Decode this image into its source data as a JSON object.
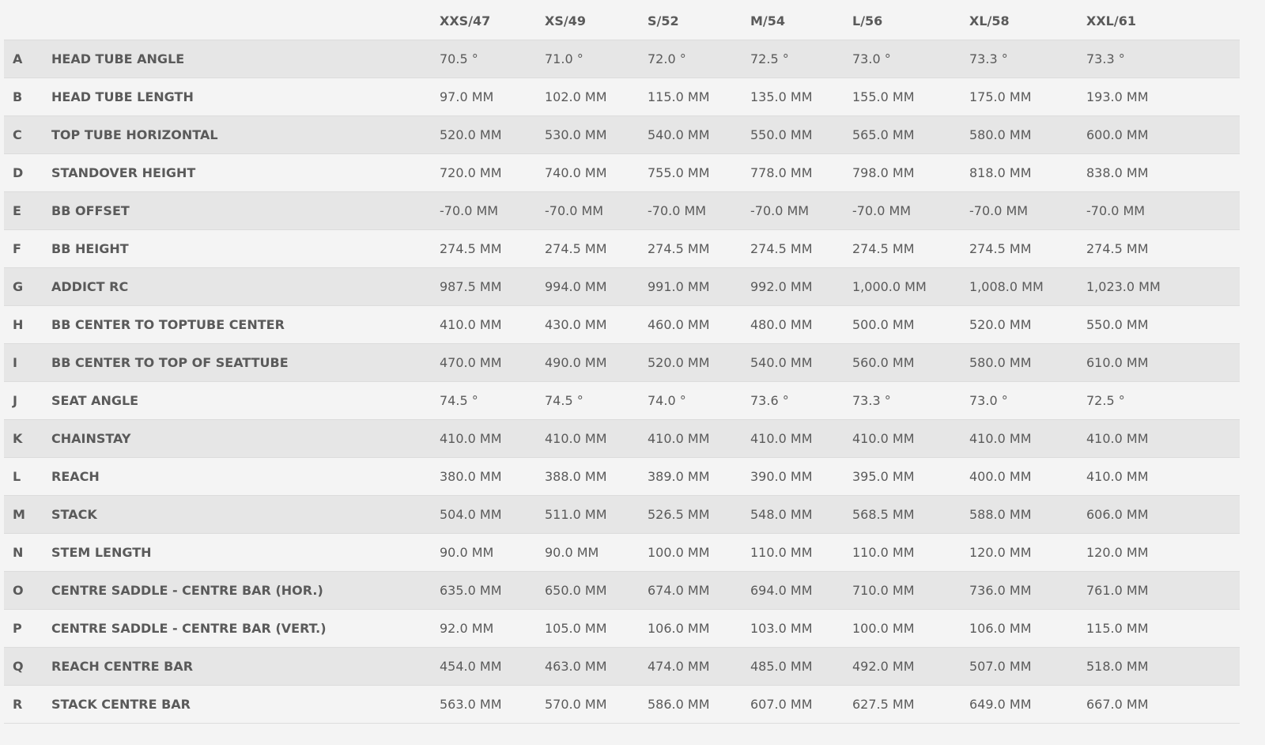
{
  "table": {
    "columns": [
      "XXS/47",
      "XS/49",
      "S/52",
      "M/54",
      "L/56",
      "XL/58",
      "XXL/61"
    ],
    "rows": [
      [
        "A",
        "HEAD TUBE ANGLE",
        "70.5 °",
        "71.0 °",
        "72.0 °",
        "72.5 °",
        "73.0 °",
        "73.3 °",
        "73.3 °"
      ],
      [
        "B",
        "HEAD TUBE LENGTH",
        "97.0 MM",
        "102.0 MM",
        "115.0 MM",
        "135.0 MM",
        "155.0 MM",
        "175.0 MM",
        "193.0 MM"
      ],
      [
        "C",
        "TOP TUBE HORIZONTAL",
        "520.0 MM",
        "530.0 MM",
        "540.0 MM",
        "550.0 MM",
        "565.0 MM",
        "580.0 MM",
        "600.0 MM"
      ],
      [
        "D",
        "STANDOVER HEIGHT",
        "720.0 MM",
        "740.0 MM",
        "755.0 MM",
        "778.0 MM",
        "798.0 MM",
        "818.0 MM",
        "838.0 MM"
      ],
      [
        "E",
        "BB OFFSET",
        "-70.0 MM",
        "-70.0 MM",
        "-70.0 MM",
        "-70.0 MM",
        "-70.0 MM",
        "-70.0 MM",
        "-70.0 MM"
      ],
      [
        "F",
        "BB HEIGHT",
        "274.5 MM",
        "274.5 MM",
        "274.5 MM",
        "274.5 MM",
        "274.5 MM",
        "274.5 MM",
        "274.5 MM"
      ],
      [
        "G",
        "ADDICT RC",
        "987.5 MM",
        "994.0 MM",
        "991.0 MM",
        "992.0 MM",
        "1,000.0 MM",
        "1,008.0 MM",
        "1,023.0 MM"
      ],
      [
        "H",
        "BB CENTER TO TOPTUBE CENTER",
        "410.0 MM",
        "430.0 MM",
        "460.0 MM",
        "480.0 MM",
        "500.0 MM",
        "520.0 MM",
        "550.0 MM"
      ],
      [
        "I",
        "BB CENTER TO TOP OF SEATTUBE",
        "470.0 MM",
        "490.0 MM",
        "520.0 MM",
        "540.0 MM",
        "560.0 MM",
        "580.0 MM",
        "610.0 MM"
      ],
      [
        "J",
        "SEAT ANGLE",
        "74.5 °",
        "74.5 °",
        "74.0 °",
        "73.6 °",
        "73.3 °",
        "73.0 °",
        "72.5 °"
      ],
      [
        "K",
        "CHAINSTAY",
        "410.0 MM",
        "410.0 MM",
        "410.0 MM",
        "410.0 MM",
        "410.0 MM",
        "410.0 MM",
        "410.0 MM"
      ],
      [
        "L",
        "REACH",
        "380.0 MM",
        "388.0 MM",
        "389.0 MM",
        "390.0 MM",
        "395.0 MM",
        "400.0 MM",
        "410.0 MM"
      ],
      [
        "M",
        "STACK",
        "504.0 MM",
        "511.0 MM",
        "526.5 MM",
        "548.0 MM",
        "568.5 MM",
        "588.0 MM",
        "606.0 MM"
      ],
      [
        "N",
        "STEM LENGTH",
        "90.0 MM",
        "90.0 MM",
        "100.0 MM",
        "110.0 MM",
        "110.0 MM",
        "120.0 MM",
        "120.0 MM"
      ],
      [
        "O",
        "CENTRE SADDLE - CENTRE BAR (HOR.)",
        "635.0 MM",
        "650.0 MM",
        "674.0 MM",
        "694.0 MM",
        "710.0 MM",
        "736.0 MM",
        "761.0 MM"
      ],
      [
        "P",
        "CENTRE SADDLE - CENTRE BAR (VERT.)",
        "92.0 MM",
        "105.0 MM",
        "106.0 MM",
        "103.0 MM",
        "100.0 MM",
        "106.0 MM",
        "115.0 MM"
      ],
      [
        "Q",
        "REACH CENTRE BAR",
        "454.0 MM",
        "463.0 MM",
        "474.0 MM",
        "485.0 MM",
        "492.0 MM",
        "507.0 MM",
        "518.0 MM"
      ],
      [
        "R",
        "STACK CENTRE BAR",
        "563.0 MM",
        "570.0 MM",
        "586.0 MM",
        "607.0 MM",
        "627.5 MM",
        "649.0 MM",
        "667.0 MM"
      ]
    ]
  }
}
